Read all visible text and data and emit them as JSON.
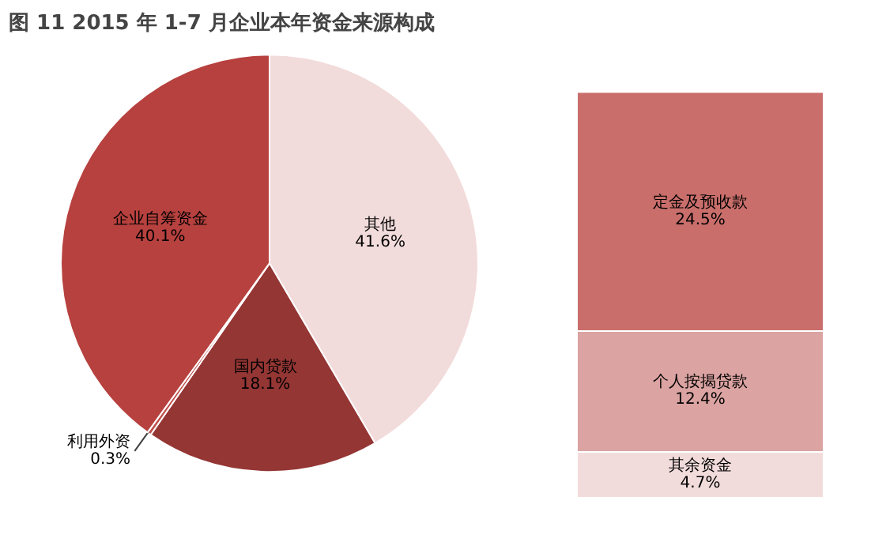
{
  "chart_data": [
    {
      "type": "pie",
      "title": "图 11   2015 年 1-7 月企业本年资金来源构成",
      "categories": [
        "其他",
        "国内贷款",
        "利用外资",
        "企业自筹资金"
      ],
      "values": [
        41.6,
        18.1,
        0.3,
        40.1
      ],
      "value_labels": [
        "41.6%",
        "18.1%",
        "0.3%",
        "40.1%"
      ],
      "colors": [
        "#f2dcdb",
        "#943634",
        "#c0504d",
        "#b7413e"
      ]
    },
    {
      "type": "bar",
      "stacked": true,
      "categories": [
        null
      ],
      "series": [
        {
          "name": "其余资金",
          "color": "#f2dcdb",
          "values": [
            4.7
          ],
          "value_labels": [
            "4.7%"
          ]
        },
        {
          "name": "个人按揭贷款",
          "color": "#dba3a1",
          "values": [
            12.4
          ],
          "value_labels": [
            "12.4%"
          ]
        },
        {
          "name": "定金及预收款",
          "color": "#c96e6b",
          "values": [
            24.5
          ],
          "value_labels": [
            "24.5%"
          ]
        }
      ]
    }
  ]
}
